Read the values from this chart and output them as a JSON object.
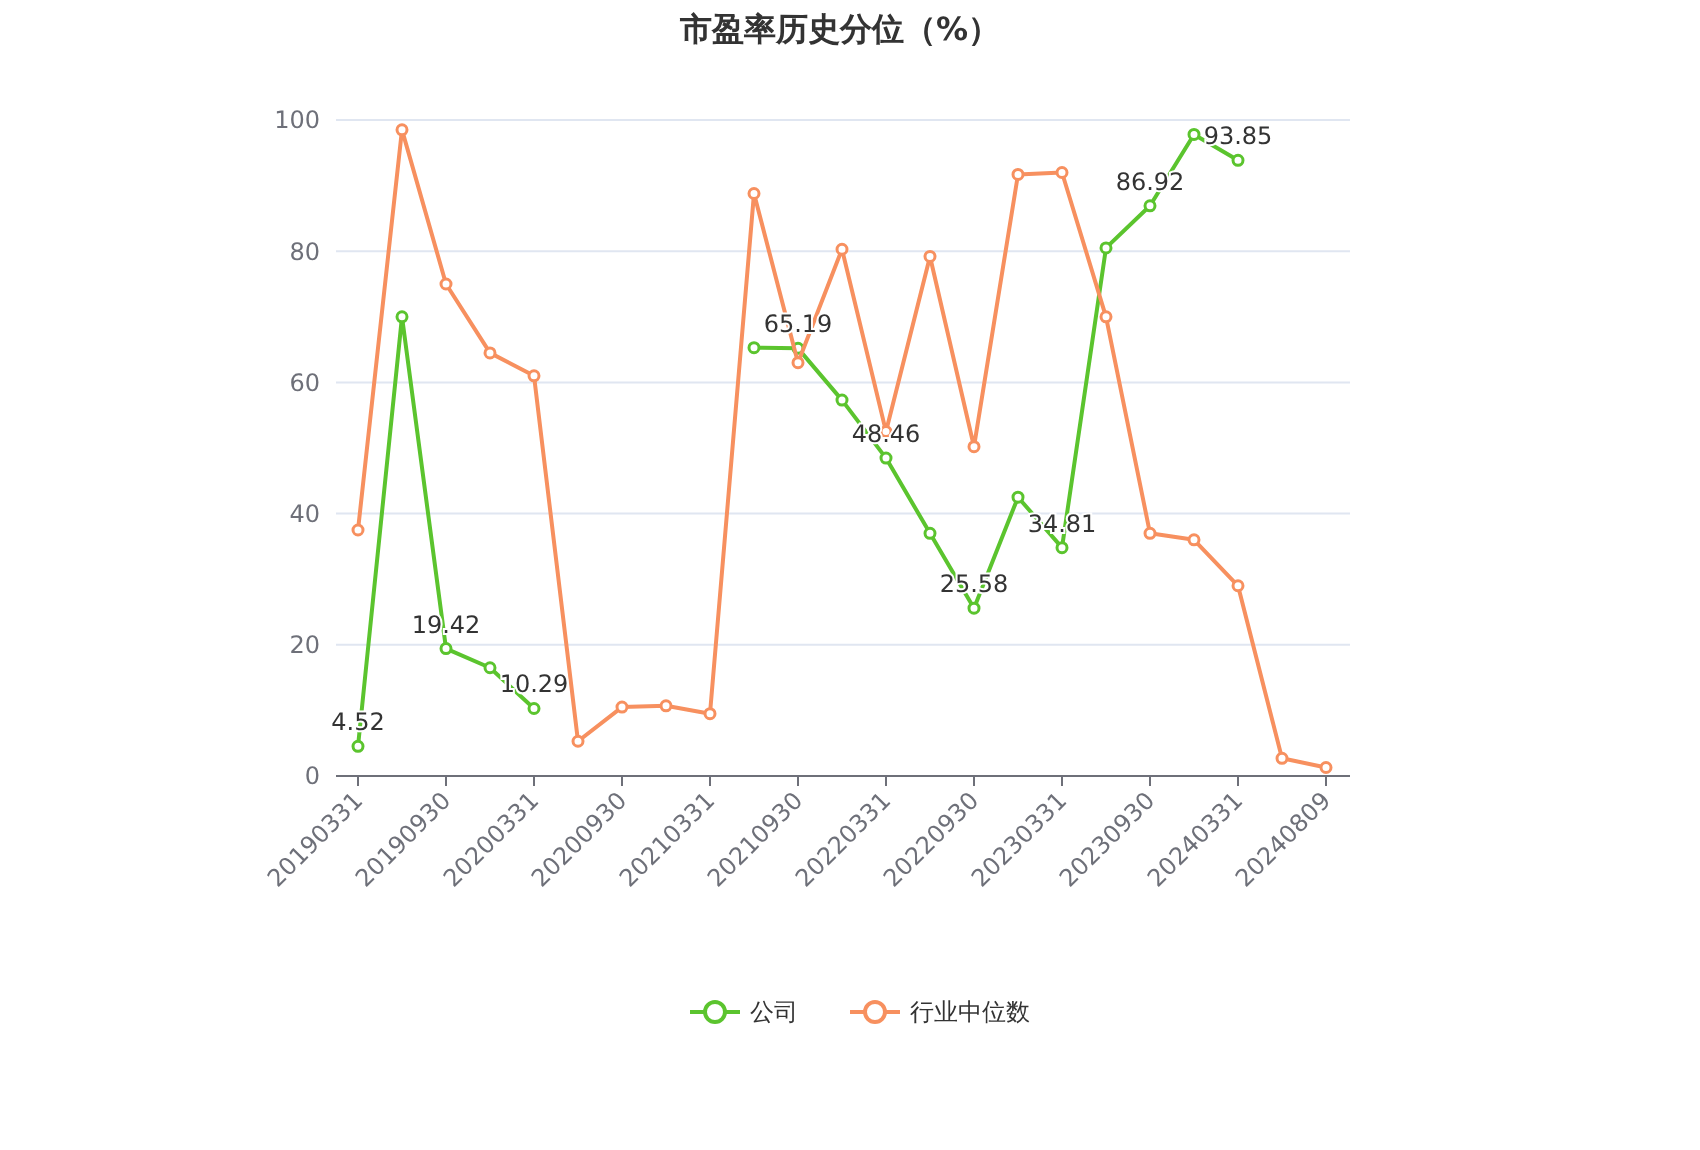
{
  "chart_data": {
    "type": "line",
    "title": "市盈率历史分位（%）",
    "categories": [
      "20190331",
      null,
      "20190930",
      null,
      "20200331",
      null,
      "20200930",
      null,
      "20210331",
      null,
      "20210930",
      null,
      "20220331",
      null,
      "20220930",
      null,
      "20230331",
      null,
      "20230930",
      null,
      "20240331",
      null,
      "20240809"
    ],
    "series": [
      {
        "name": "公司",
        "color": "#5bc42e",
        "values": [
          4.52,
          70,
          19.42,
          16.5,
          10.29,
          null,
          null,
          null,
          null,
          65.3,
          65.19,
          57.3,
          48.46,
          37,
          25.58,
          42.5,
          34.81,
          80.5,
          86.92,
          97.8,
          93.85,
          null,
          null
        ],
        "value_labels": [
          "4.52",
          null,
          "19.42",
          null,
          "10.29",
          null,
          null,
          null,
          null,
          null,
          "65.19",
          null,
          "48.46",
          null,
          "25.58",
          null,
          "34.81",
          null,
          "86.92",
          null,
          "93.85",
          null,
          null
        ]
      },
      {
        "name": "行业中位数",
        "color": "#f7905f",
        "values": [
          37.5,
          98.5,
          75,
          64.5,
          61,
          5.3,
          10.5,
          10.7,
          9.5,
          88.8,
          63,
          80.3,
          52.5,
          79.2,
          50.2,
          91.7,
          92,
          70,
          37,
          36,
          29,
          2.7,
          1.3
        ]
      }
    ],
    "ylim": [
      0,
      100
    ],
    "yticks": [
      0,
      20,
      40,
      60,
      80,
      100
    ],
    "grid": "y",
    "legend": "bottom",
    "marker": "circle",
    "line_style": "solid"
  }
}
